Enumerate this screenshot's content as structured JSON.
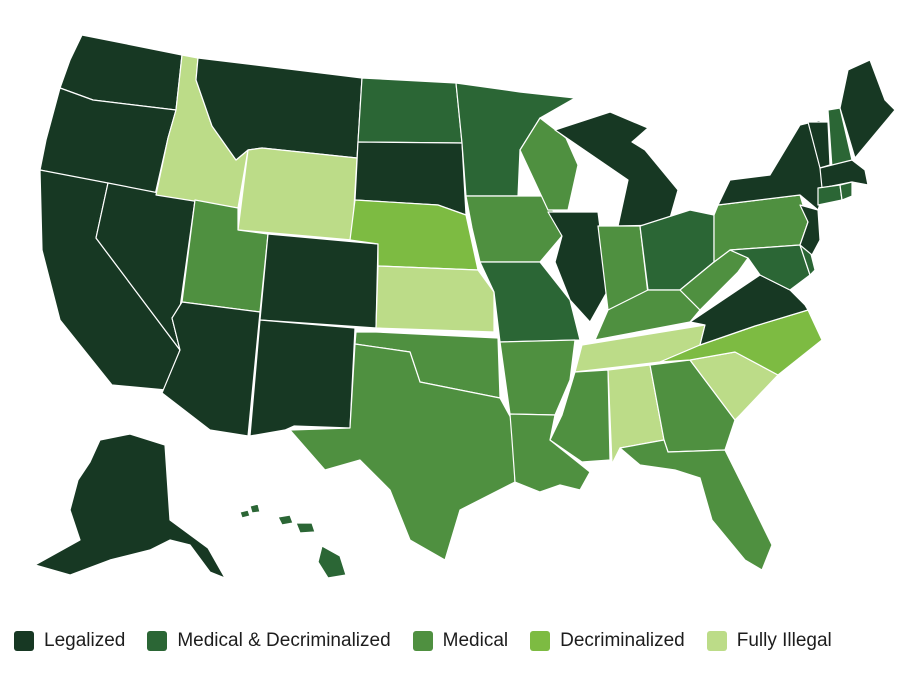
{
  "legend": {
    "items": [
      {
        "key": "legalized",
        "label": "Legalized",
        "color": "#173823"
      },
      {
        "key": "medical_decrim",
        "label": "Medical & Decriminalized",
        "color": "#2b6635"
      },
      {
        "key": "medical",
        "label": "Medical",
        "color": "#4f9040"
      },
      {
        "key": "decrim",
        "label": "Decriminalized",
        "color": "#7dbb42"
      },
      {
        "key": "illegal",
        "label": "Fully Illegal",
        "color": "#bcdc88"
      }
    ]
  },
  "map_data": {
    "type": "choropleth",
    "region": "United States",
    "state_status": {
      "WA": "legalized",
      "OR": "legalized",
      "CA": "legalized",
      "NV": "legalized",
      "ID": "illegal",
      "MT": "legalized",
      "WY": "illegal",
      "UT": "medical",
      "AZ": "legalized",
      "CO": "legalized",
      "NM": "legalized",
      "ND": "medical_decrim",
      "SD": "legalized",
      "NE": "decrim",
      "KS": "illegal",
      "OK": "medical",
      "TX": "medical",
      "MN": "medical_decrim",
      "IA": "medical",
      "MO": "medical_decrim",
      "AR": "medical",
      "LA": "medical",
      "WI": "medical",
      "IL": "legalized",
      "MI": "legalized",
      "IN": "medical",
      "OH": "medical_decrim",
      "KY": "medical",
      "TN": "illegal",
      "MS": "medical",
      "AL": "illegal",
      "GA": "medical",
      "FL": "medical",
      "SC": "illegal",
      "NC": "decrim",
      "VA": "legalized",
      "WV": "medical",
      "PA": "medical",
      "NY": "legalized",
      "VT": "legalized",
      "NH": "medical_decrim",
      "ME": "legalized",
      "MA": "legalized",
      "CT": "medical_decrim",
      "RI": "medical_decrim",
      "NJ": "legalized",
      "DE": "medical_decrim",
      "MD": "medical_decrim",
      "AK": "legalized",
      "HI": "medical_decrim"
    }
  }
}
